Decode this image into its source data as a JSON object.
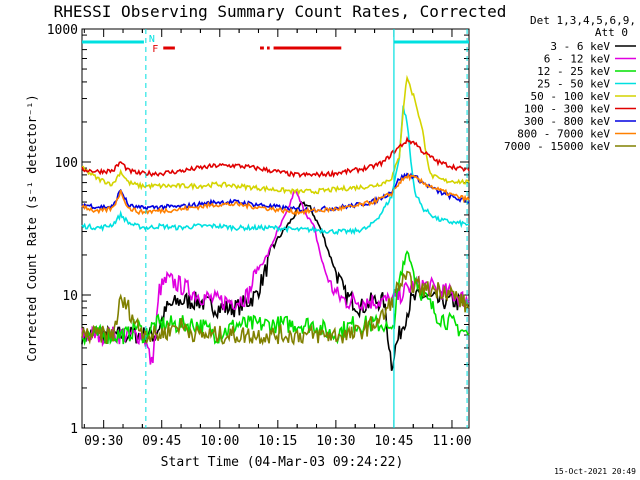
{
  "chart_data": {
    "type": "line",
    "title": "RHESSI Observing Summary Count Rates, Corrected",
    "xlabel": "Start Time (04-Mar-03 09:24:22)",
    "ylabel": "Corrected Count Rate (s⁻¹ detector⁻¹)",
    "x_unit": "minutes after 09:24:22",
    "xlim": [
      0,
      100
    ],
    "x_ticks": [
      {
        "label": "09:30",
        "value": 5.6
      },
      {
        "label": "09:45",
        "value": 20.6
      },
      {
        "label": "10:00",
        "value": 35.6
      },
      {
        "label": "10:15",
        "value": 50.6
      },
      {
        "label": "10:30",
        "value": 65.6
      },
      {
        "label": "10:45",
        "value": 80.6
      },
      {
        "label": "11:00",
        "value": 95.6
      }
    ],
    "y_scale": "log",
    "ylim": [
      1,
      1000
    ],
    "y_ticks": [
      {
        "label": "1",
        "value": 1
      },
      {
        "label": "10",
        "value": 10
      },
      {
        "label": "100",
        "value": 100
      },
      {
        "label": "1000",
        "value": 1000
      }
    ],
    "legend": {
      "placement": "right",
      "title_lines": [
        "Det 1,3,4,5,6,9,",
        "Att 0"
      ]
    },
    "series": [
      {
        "name": "3 - 6 keV",
        "color": "#000000",
        "x": [
          0,
          5,
          10,
          13,
          16,
          19,
          22,
          25,
          30,
          35,
          40,
          43,
          45,
          47,
          50,
          53,
          55,
          57,
          59,
          62,
          64,
          66,
          68,
          70,
          72,
          75,
          78,
          80,
          81,
          82,
          85,
          88,
          92,
          96,
          100
        ],
        "y": [
          5,
          5,
          5,
          5,
          5,
          5,
          8,
          9,
          9,
          8,
          8,
          9,
          10,
          14,
          25,
          33,
          40,
          50,
          45,
          30,
          20,
          14,
          10,
          9,
          8,
          9,
          9,
          3,
          4,
          5,
          9,
          10,
          9,
          9,
          8
        ]
      },
      {
        "name": "6 - 12 keV",
        "color": "#e000e0",
        "x": [
          0,
          5,
          10,
          13,
          16,
          18,
          19,
          20,
          22,
          25,
          30,
          35,
          40,
          43,
          45,
          48,
          50,
          53,
          55,
          57,
          60,
          62,
          64,
          66,
          68,
          70,
          72,
          75,
          78,
          80,
          82,
          84,
          86,
          88,
          92,
          96,
          100
        ],
        "y": [
          5,
          5,
          5,
          5,
          5,
          3,
          5,
          11,
          13,
          12,
          10,
          9,
          9,
          10,
          15,
          20,
          28,
          42,
          62,
          46,
          32,
          18,
          12,
          10,
          9,
          9,
          9,
          9,
          9,
          9,
          10,
          11,
          12,
          12,
          11,
          10,
          9
        ]
      },
      {
        "name": "12 - 25 keV",
        "color": "#00e000",
        "x": [
          0,
          5,
          10,
          12,
          14,
          16,
          19,
          22,
          25,
          30,
          35,
          40,
          45,
          50,
          55,
          60,
          65,
          70,
          75,
          78,
          80,
          82,
          84,
          86,
          88,
          92,
          96,
          100
        ],
        "y": [
          5,
          5,
          5,
          5,
          6,
          5,
          6,
          6,
          6,
          6,
          5,
          6,
          6,
          6,
          6,
          6,
          5,
          6,
          6,
          6,
          5,
          12,
          22,
          14,
          10,
          7,
          6,
          5
        ]
      },
      {
        "name": "25 - 50 keV",
        "color": "#00e0e0",
        "x": [
          0,
          5,
          8,
          10,
          12,
          14,
          17,
          20,
          25,
          30,
          35,
          40,
          45,
          50,
          55,
          60,
          65,
          70,
          74,
          77,
          80,
          82,
          83,
          84,
          85,
          86,
          88,
          92,
          96,
          100
        ],
        "y": [
          33,
          32,
          34,
          40,
          35,
          33,
          32,
          33,
          32,
          33,
          33,
          32,
          32,
          32,
          31,
          31,
          30,
          30,
          32,
          40,
          55,
          110,
          260,
          200,
          100,
          60,
          45,
          37,
          35,
          34
        ]
      },
      {
        "name": "50 - 100 keV",
        "color": "#d4d400",
        "x": [
          0,
          4,
          8,
          10,
          12,
          15,
          20,
          25,
          30,
          35,
          40,
          45,
          50,
          55,
          60,
          65,
          70,
          75,
          78,
          80,
          82,
          83,
          84,
          85,
          86,
          88,
          90,
          92,
          94,
          96,
          100
        ],
        "y": [
          90,
          75,
          68,
          85,
          70,
          66,
          66,
          66,
          66,
          68,
          66,
          64,
          62,
          60,
          60,
          62,
          64,
          66,
          70,
          76,
          110,
          250,
          440,
          350,
          300,
          170,
          80,
          75,
          72,
          72,
          70
        ]
      },
      {
        "name": "100 - 300 keV",
        "color": "#e00000",
        "x": [
          0,
          4,
          8,
          10,
          12,
          15,
          20,
          25,
          30,
          35,
          40,
          45,
          50,
          55,
          60,
          65,
          70,
          75,
          78,
          80,
          82,
          84,
          86,
          88,
          92,
          96,
          100
        ],
        "y": [
          88,
          85,
          86,
          100,
          86,
          82,
          82,
          85,
          90,
          94,
          94,
          90,
          85,
          80,
          80,
          82,
          86,
          92,
          100,
          115,
          130,
          145,
          140,
          120,
          100,
          92,
          86
        ]
      },
      {
        "name": "300 - 800 keV",
        "color": "#0000e0",
        "x": [
          0,
          4,
          8,
          10,
          12,
          15,
          20,
          25,
          30,
          35,
          40,
          45,
          50,
          55,
          60,
          65,
          70,
          75,
          78,
          80,
          82,
          84,
          86,
          88,
          92,
          96,
          100
        ],
        "y": [
          48,
          46,
          46,
          62,
          47,
          45,
          46,
          46,
          48,
          50,
          50,
          48,
          46,
          44,
          44,
          45,
          47,
          50,
          55,
          60,
          75,
          80,
          78,
          70,
          60,
          54,
          50
        ]
      },
      {
        "name": "800 - 7000 keV",
        "color": "#ff8000",
        "x": [
          0,
          4,
          8,
          10,
          12,
          15,
          20,
          25,
          30,
          35,
          40,
          45,
          50,
          55,
          60,
          65,
          70,
          75,
          78,
          80,
          82,
          84,
          86,
          88,
          92,
          96,
          100
        ],
        "y": [
          47,
          42,
          45,
          60,
          45,
          42,
          43,
          44,
          46,
          48,
          48,
          46,
          44,
          42,
          43,
          44,
          46,
          50,
          54,
          58,
          70,
          78,
          76,
          70,
          62,
          56,
          52
        ]
      },
      {
        "name": "7000 - 15000 keV",
        "color": "#808000",
        "x": [
          0,
          4,
          8,
          10,
          12,
          14,
          17,
          20,
          25,
          30,
          35,
          40,
          45,
          50,
          55,
          60,
          65,
          70,
          75,
          78,
          80,
          82,
          84,
          86,
          88,
          90,
          92,
          94,
          96,
          98,
          100
        ],
        "y": [
          5,
          5,
          5,
          9,
          8,
          6,
          5,
          5,
          6,
          5,
          5,
          5,
          5,
          5,
          5,
          5,
          5,
          5,
          6,
          7,
          9,
          12,
          13,
          12,
          11,
          11,
          11,
          11,
          10,
          9,
          8
        ]
      }
    ],
    "annotations": {
      "flags": [
        {
          "label": "F",
          "color": "#e00000",
          "bars": [
            [
              21,
              24
            ],
            [
              46,
              47
            ],
            [
              47.8,
              48.5
            ],
            [
              49.5,
              67
            ]
          ]
        },
        {
          "label": "N",
          "color": "#00e0e0",
          "bars": [
            [
              0,
              16
            ],
            [
              80.6,
              100
            ]
          ]
        }
      ],
      "vertical_dashed": [
        16.5,
        99.5
      ],
      "vertical_solid": [
        80.6
      ]
    }
  },
  "footer": {
    "timestamp": "15-Oct-2021 20:49"
  }
}
